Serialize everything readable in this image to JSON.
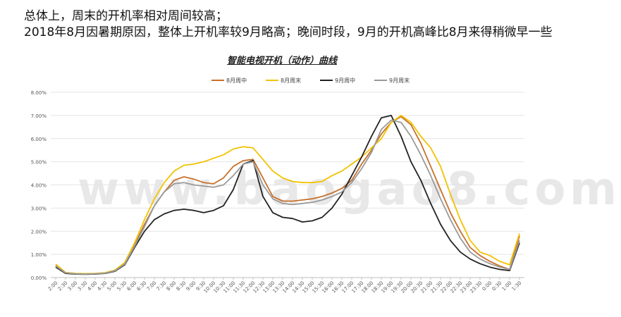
{
  "headline": {
    "line1": "总体上，周末的开机率相对周间较高；",
    "line2": "2018年8月因暑期原因，整体上开机率较9月略高；晚间时段，9月的开机高峰比8月来得稍微早一些"
  },
  "watermark": "www.baogao8.com",
  "chart_data": {
    "type": "line",
    "title": "智能电视开机（动作）曲线",
    "xlabel": "",
    "ylabel": "",
    "ylim": [
      0,
      8
    ],
    "y_unit": "%",
    "grid": true,
    "legend_position": "top",
    "x": [
      "2:00",
      "2:30",
      "3:00",
      "3:30",
      "4:00",
      "4:30",
      "5:00",
      "5:30",
      "6:00",
      "6:30",
      "7:00",
      "7:30",
      "8:00",
      "8:30",
      "9:00",
      "9:30",
      "10:00",
      "10:30",
      "11:00",
      "11:30",
      "12:00",
      "12:30",
      "13:00",
      "13:30",
      "14:00",
      "14:30",
      "15:00",
      "15:30",
      "16:00",
      "16:30",
      "17:00",
      "17:30",
      "18:00",
      "18:30",
      "19:00",
      "19:30",
      "20:00",
      "20:30",
      "21:00",
      "21:30",
      "22:00",
      "22:30",
      "23:00",
      "23:30",
      "0:00",
      "0:30",
      "1:00",
      "1:30"
    ],
    "y_ticks": [
      "0.00%",
      "1.00%",
      "2.00%",
      "3.00%",
      "4.00%",
      "5.00%",
      "6.00%",
      "7.00%",
      "8.00%"
    ],
    "series": [
      {
        "name": "8月周中",
        "color": "#c7702a",
        "values": [
          0.52,
          0.2,
          0.17,
          0.16,
          0.17,
          0.2,
          0.3,
          0.6,
          1.4,
          2.3,
          3.1,
          3.7,
          4.2,
          4.35,
          4.25,
          4.1,
          4.05,
          4.3,
          4.8,
          5.05,
          5.1,
          4.3,
          3.5,
          3.3,
          3.3,
          3.35,
          3.4,
          3.5,
          3.65,
          3.85,
          4.2,
          4.9,
          5.5,
          6.2,
          6.7,
          6.95,
          6.6,
          5.8,
          4.8,
          3.8,
          2.8,
          2.0,
          1.3,
          0.95,
          0.7,
          0.5,
          0.35,
          1.8
        ]
      },
      {
        "name": "8月周末",
        "color": "#f2c200",
        "values": [
          0.58,
          0.22,
          0.18,
          0.17,
          0.18,
          0.21,
          0.32,
          0.65,
          1.5,
          2.5,
          3.4,
          4.1,
          4.6,
          4.85,
          4.9,
          5.0,
          5.15,
          5.3,
          5.55,
          5.65,
          5.6,
          5.1,
          4.6,
          4.3,
          4.15,
          4.1,
          4.1,
          4.15,
          4.4,
          4.6,
          4.9,
          5.2,
          5.6,
          6.0,
          6.7,
          7.0,
          6.7,
          6.1,
          5.6,
          4.8,
          3.6,
          2.5,
          1.6,
          1.1,
          0.95,
          0.7,
          0.55,
          1.9
        ]
      },
      {
        "name": "9月周中",
        "color": "#222222",
        "values": [
          0.45,
          0.18,
          0.15,
          0.14,
          0.15,
          0.18,
          0.27,
          0.55,
          1.3,
          2.0,
          2.5,
          2.75,
          2.9,
          2.95,
          2.9,
          2.8,
          2.9,
          3.1,
          3.8,
          4.9,
          5.05,
          3.5,
          2.8,
          2.6,
          2.55,
          2.4,
          2.45,
          2.6,
          3.0,
          3.6,
          4.4,
          5.2,
          6.1,
          6.9,
          7.0,
          6.1,
          5.0,
          4.2,
          3.2,
          2.3,
          1.6,
          1.1,
          0.8,
          0.6,
          0.45,
          0.35,
          0.3,
          1.5
        ]
      },
      {
        "name": "9月周末",
        "color": "#9a9a9a",
        "values": [
          0.5,
          0.2,
          0.16,
          0.15,
          0.16,
          0.19,
          0.29,
          0.58,
          1.35,
          2.2,
          3.1,
          3.7,
          4.05,
          4.1,
          4.0,
          3.95,
          3.9,
          4.0,
          4.4,
          4.9,
          5.0,
          4.0,
          3.4,
          3.2,
          3.15,
          3.2,
          3.25,
          3.35,
          3.5,
          3.7,
          4.1,
          4.7,
          5.4,
          6.4,
          6.8,
          6.7,
          6.1,
          5.3,
          4.4,
          3.4,
          2.5,
          1.7,
          1.1,
          0.8,
          0.6,
          0.45,
          0.35,
          1.6
        ]
      }
    ]
  }
}
